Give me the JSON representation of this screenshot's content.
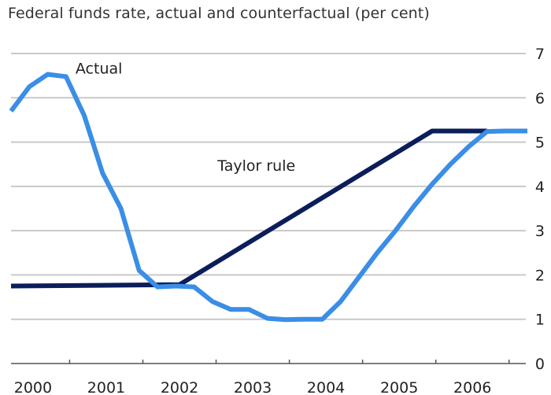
{
  "chart_data": {
    "type": "line",
    "title": "Federal funds rate, actual and counterfactual (per cent)",
    "xlabel": "",
    "ylabel": "",
    "xlim": [
      1999.7,
      2006.75
    ],
    "ylim": [
      0,
      7
    ],
    "y_ticks": [
      "0",
      "1",
      "2",
      "3",
      "4",
      "5",
      "6",
      "7"
    ],
    "x_tick_labels": [
      "2000",
      "2001",
      "2002",
      "2003",
      "2004",
      "2005",
      "2006"
    ],
    "grid": true,
    "axis_side": "right",
    "series": [
      {
        "name": "Actual",
        "color": "#3a8ee6",
        "points": [
          [
            1999.7,
            5.7
          ],
          [
            1999.95,
            6.25
          ],
          [
            2000.2,
            6.53
          ],
          [
            2000.45,
            6.48
          ],
          [
            2000.7,
            5.6
          ],
          [
            2000.95,
            4.3
          ],
          [
            2001.2,
            3.5
          ],
          [
            2001.45,
            2.1
          ],
          [
            2001.7,
            1.73
          ],
          [
            2001.95,
            1.75
          ],
          [
            2002.2,
            1.73
          ],
          [
            2002.45,
            1.4
          ],
          [
            2002.7,
            1.22
          ],
          [
            2002.95,
            1.22
          ],
          [
            2003.2,
            1.02
          ],
          [
            2003.45,
            0.99
          ],
          [
            2003.7,
            1.0
          ],
          [
            2003.95,
            1.0
          ],
          [
            2004.2,
            1.4
          ],
          [
            2004.45,
            1.95
          ],
          [
            2004.7,
            2.5
          ],
          [
            2004.95,
            3.0
          ],
          [
            2005.2,
            3.55
          ],
          [
            2005.45,
            4.05
          ],
          [
            2005.7,
            4.5
          ],
          [
            2005.95,
            4.9
          ],
          [
            2006.2,
            5.24
          ],
          [
            2006.45,
            5.25
          ],
          [
            2006.75,
            5.25
          ]
        ]
      },
      {
        "name": "Taylor rule",
        "color": "#0b1e5b",
        "points": [
          [
            1999.7,
            1.75
          ],
          [
            2002.0,
            1.78
          ],
          [
            2005.45,
            5.25
          ],
          [
            2006.2,
            5.25
          ]
        ]
      }
    ],
    "annotations": [
      {
        "text": "Actual",
        "series": "Actual"
      },
      {
        "text": "Taylor rule",
        "series": "Taylor rule"
      }
    ]
  }
}
